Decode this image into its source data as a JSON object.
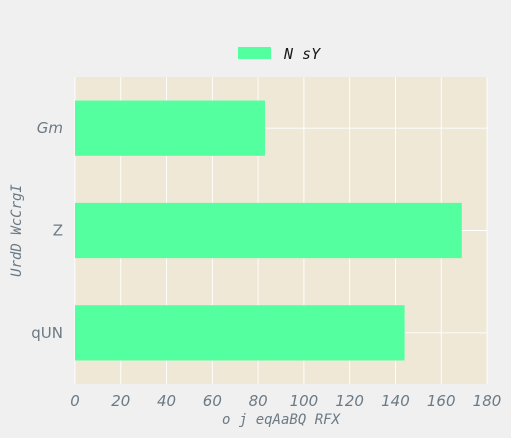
{
  "chart_data": {
    "type": "bar",
    "orientation": "horizontal",
    "categories": [
      "Gm",
      "Z",
      "qUN"
    ],
    "series": [
      {
        "name": "N sY",
        "values": [
          83,
          169,
          144
        ],
        "color": "#54ff9f"
      }
    ],
    "xlabel": "o j eqAaBQ RFX",
    "ylabel": "UrdD WcCrgI",
    "xlim": [
      0,
      180
    ],
    "xticks": [
      0,
      20,
      40,
      60,
      80,
      100,
      120,
      140,
      160,
      180
    ],
    "grid": true,
    "legend": "top-center",
    "plot_background": "#efe8d6",
    "grid_color": "#ffffff",
    "tick_color": "#6b7a85"
  }
}
